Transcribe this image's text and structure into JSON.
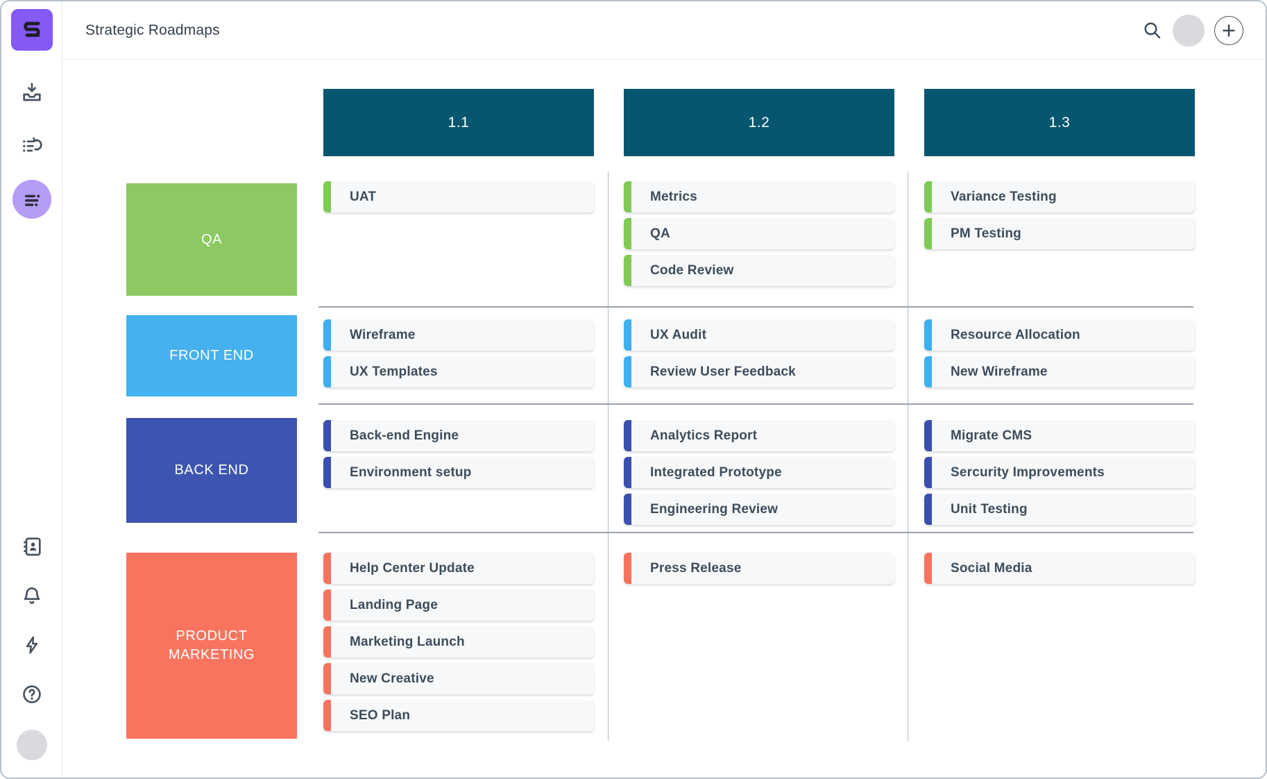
{
  "header": {
    "title": "Strategic Roadmaps"
  },
  "sidebar": {
    "logo": "roadmunk-logo",
    "help_glyph": "?",
    "top_items": [
      {
        "id": "import-inbox",
        "icon": "inbox-download-icon"
      },
      {
        "id": "items-list",
        "icon": "list-history-icon"
      },
      {
        "id": "roadmap-view",
        "icon": "roadmap-rows-icon",
        "active": true
      }
    ],
    "bottom_items": [
      {
        "id": "contacts",
        "icon": "address-book-icon"
      },
      {
        "id": "notifications",
        "icon": "bell-icon"
      },
      {
        "id": "activity",
        "icon": "lightning-icon"
      },
      {
        "id": "help",
        "icon": "question-circle-icon"
      },
      {
        "id": "profile",
        "icon": "avatar-circle"
      }
    ]
  },
  "top_controls": [
    {
      "id": "search",
      "icon": "magnifier-icon"
    },
    {
      "id": "account",
      "icon": "avatar-circle"
    },
    {
      "id": "add-new",
      "icon": "plus-icon"
    }
  ],
  "board": {
    "header_bg": "#07566f",
    "columns": [
      {
        "label": "1.1"
      },
      {
        "label": "1.2"
      },
      {
        "label": "1.3"
      }
    ],
    "rows": [
      {
        "label": "QA",
        "label_color": "#8cc963",
        "accent_color": "#7fca54",
        "cells": [
          [
            "UAT"
          ],
          [
            "Metrics",
            "QA",
            "Code Review"
          ],
          [
            "Variance Testing",
            "PM Testing"
          ]
        ]
      },
      {
        "label": "FRONT END",
        "label_color": "#45b1ee",
        "accent_color": "#3cb0f0",
        "cells": [
          [
            "Wireframe",
            "UX Templates"
          ],
          [
            "UX Audit",
            "Review User Feedback"
          ],
          [
            "Resource Allocation",
            "New Wireframe"
          ]
        ]
      },
      {
        "label": "BACK END",
        "label_color": "#3d55b1",
        "accent_color": "#3a4fae",
        "cells": [
          [
            "Back-end Engine",
            "Environment setup"
          ],
          [
            "Analytics Report",
            "Integrated Prototype",
            "Engineering Review"
          ],
          [
            "Migrate CMS",
            "Sercurity Improvements",
            "Unit Testing"
          ]
        ]
      },
      {
        "label": "PRODUCT MARKETING",
        "label_color": "#f9745f",
        "accent_color": "#f8735e",
        "cells": [
          [
            "Help Center Update",
            "Landing Page",
            "Marketing Launch",
            "New Creative",
            "SEO Plan"
          ],
          [
            "Press Release"
          ],
          [
            "Social Media"
          ]
        ]
      }
    ]
  }
}
